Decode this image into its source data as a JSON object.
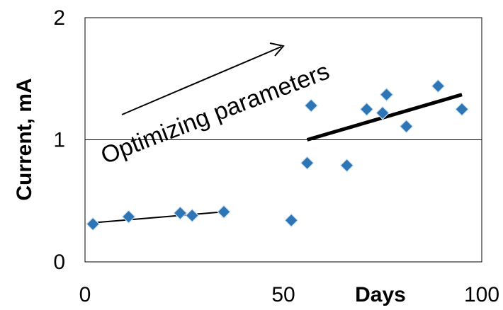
{
  "chart_data": {
    "type": "scatter",
    "title": "",
    "xlabel": "Days",
    "ylabel": "Current, mA",
    "xlim": [
      0,
      100
    ],
    "ylim": [
      0,
      2
    ],
    "x_ticks": [
      "0",
      "50",
      "100"
    ],
    "y_ticks": [
      "0",
      "1",
      "2"
    ],
    "grid": "horizontal line at y=1",
    "legend": "none",
    "series": [
      {
        "type": "scatter",
        "marker": "diamond",
        "color": "#2e75b6",
        "x": [
          2,
          11,
          24,
          27,
          35,
          52,
          56,
          57,
          66,
          71,
          75,
          76,
          81,
          89,
          95
        ],
        "y": [
          0.31,
          0.37,
          0.4,
          0.38,
          0.41,
          0.34,
          0.81,
          1.28,
          0.79,
          1.25,
          1.22,
          1.37,
          1.11,
          1.44,
          1.25
        ]
      }
    ],
    "trendlines": [
      {
        "x": [
          2,
          35
        ],
        "y": [
          0.32,
          0.41
        ],
        "color": "#000000",
        "weight": "thin"
      },
      {
        "x": [
          56,
          95
        ],
        "y": [
          1.0,
          1.37
        ],
        "color": "#000000",
        "weight": "thick"
      }
    ],
    "annotations": [
      {
        "text": "Optimizing parameters",
        "style": "rotated",
        "arrow": "points up-right"
      }
    ]
  }
}
